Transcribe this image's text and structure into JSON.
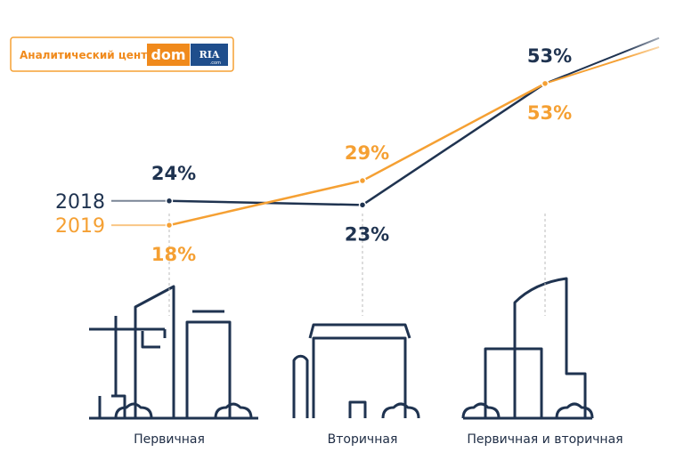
{
  "logo": {
    "text": "Аналитический центр",
    "brand": "dom",
    "brand2": "RIA",
    "suffix": ".com"
  },
  "chart_data": {
    "type": "line",
    "categories": [
      "Первичная",
      "Вторичная",
      "Первичная и вторичная"
    ],
    "series": [
      {
        "name": "2018",
        "color": "#1f3350",
        "values": [
          24,
          23,
          53
        ],
        "value_labels": [
          "24%",
          "23%",
          "53%"
        ]
      },
      {
        "name": "2019",
        "color": "#f5a033",
        "values": [
          18,
          29,
          53
        ],
        "value_labels": [
          "18%",
          "29%",
          "53%"
        ]
      }
    ]
  }
}
